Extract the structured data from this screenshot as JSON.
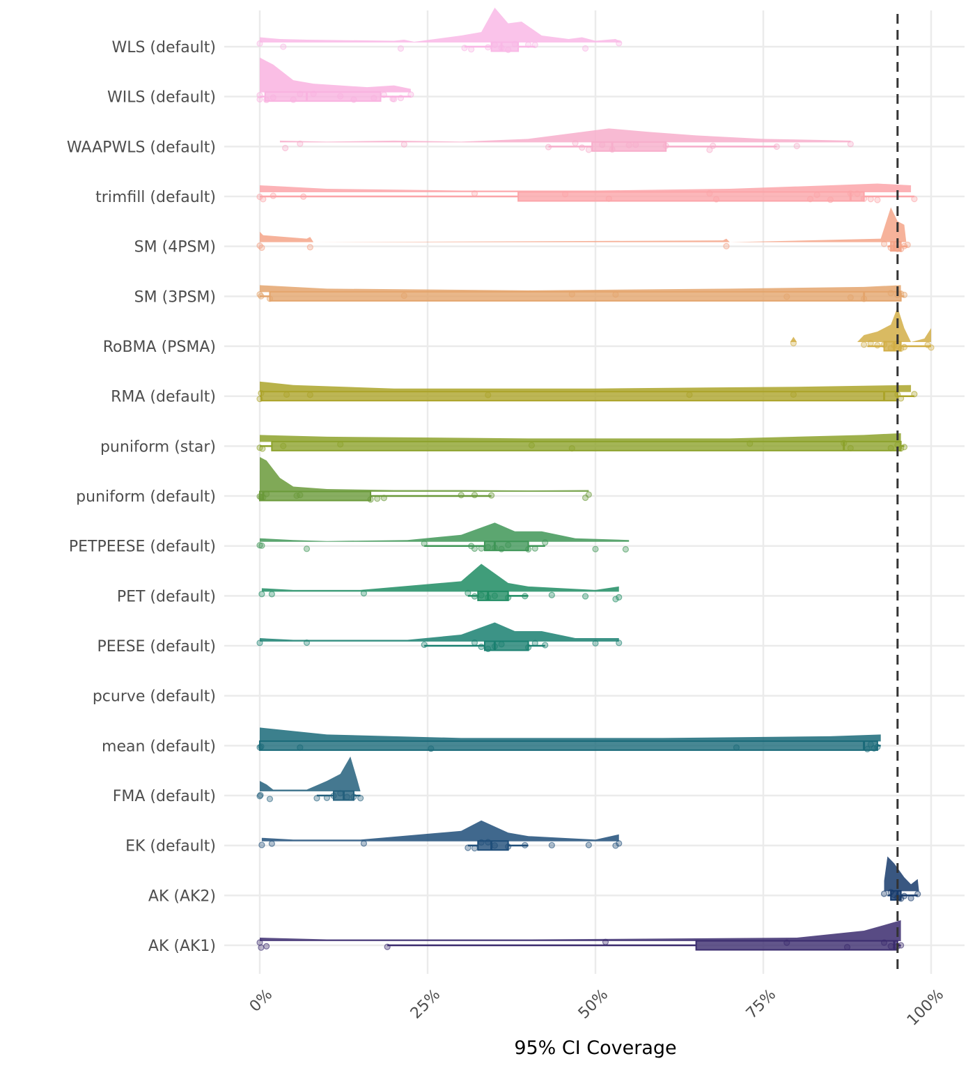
{
  "chart_data": {
    "type": "raincloud",
    "title": "",
    "xlabel": "95% CI Coverage",
    "ylabel": "",
    "xlim": [
      0,
      100
    ],
    "x_ticks": [
      0,
      25,
      50,
      75,
      100
    ],
    "x_tick_labels": [
      "0%",
      "25%",
      "50%",
      "75%",
      "100%"
    ],
    "x_tick_label_rotation_deg": 45,
    "reference_line": {
      "value": 95,
      "style": "dashed",
      "color": "#333333"
    },
    "grid": true,
    "legend": "none",
    "categories": [
      "WLS (default)",
      "WILS (default)",
      "WAAPWLS (default)",
      "trimfill (default)",
      "SM (4PSM)",
      "SM (3PSM)",
      "RoBMA (PSMA)",
      "RMA (default)",
      "puniform (star)",
      "puniform (default)",
      "PETPEESE (default)",
      "PET (default)",
      "PEESE (default)",
      "pcurve (default)",
      "mean (default)",
      "FMA (default)",
      "EK (default)",
      "AK (AK2)",
      "AK (AK1)"
    ],
    "series": [
      {
        "name": "WLS (default)",
        "color": "#F9B8E6",
        "box": {
          "min": 30.5,
          "q1": 34.5,
          "median": 36,
          "q3": 38.5,
          "max": 41
        },
        "points": [
          0,
          3.5,
          21,
          30.5,
          31.5,
          34,
          35,
          36,
          37,
          38,
          40,
          41,
          48.5,
          53.5
        ],
        "density": [
          [
            0,
            0.15
          ],
          [
            3,
            0.1
          ],
          [
            7,
            0.08
          ],
          [
            20,
            0.05
          ],
          [
            21.5,
            0.08
          ],
          [
            23,
            0.02
          ],
          [
            30,
            0.2
          ],
          [
            33,
            0.3
          ],
          [
            35,
            1.0
          ],
          [
            37,
            0.55
          ],
          [
            39,
            0.6
          ],
          [
            42,
            0.2
          ],
          [
            46,
            0.1
          ],
          [
            48,
            0.15
          ],
          [
            50,
            0.05
          ],
          [
            53,
            0.1
          ],
          [
            54,
            0
          ]
        ]
      },
      {
        "name": "WILS (default)",
        "color": "#F9B3E0",
        "box": {
          "min": 0,
          "q1": 0.8,
          "median": 7,
          "q3": 18,
          "max": 22.5
        },
        "points": [
          0,
          0,
          1,
          2,
          5,
          6,
          8,
          12,
          14,
          17,
          18.5,
          19.8,
          20,
          21,
          22.5
        ],
        "density": [
          [
            0,
            1.0
          ],
          [
            2,
            0.8
          ],
          [
            5,
            0.35
          ],
          [
            8,
            0.25
          ],
          [
            12,
            0.2
          ],
          [
            16,
            0.15
          ],
          [
            20,
            0.2
          ],
          [
            22.5,
            0.1
          ]
        ]
      },
      {
        "name": "WAAPWLS (default)",
        "color": "#F7AECB",
        "box": {
          "min": 43,
          "q1": 49.5,
          "median": 52.5,
          "q3": 60.5,
          "max": 77
        },
        "points": [
          3.8,
          6,
          21.5,
          43,
          47,
          48,
          49,
          51,
          52.5,
          55,
          56,
          60.5,
          67,
          67.5,
          77,
          80,
          88
        ],
        "density": [
          [
            3,
            0.05
          ],
          [
            10,
            0.02
          ],
          [
            20,
            0.05
          ],
          [
            30,
            0.02
          ],
          [
            40,
            0.1
          ],
          [
            48,
            0.3
          ],
          [
            52,
            0.4
          ],
          [
            58,
            0.3
          ],
          [
            65,
            0.2
          ],
          [
            75,
            0.1
          ],
          [
            88,
            0.05
          ]
        ]
      },
      {
        "name": "trimfill (default)",
        "color": "#FBA5A9",
        "box": {
          "min": 0,
          "q1": 38.5,
          "median": 88,
          "q3": 90,
          "max": 97.5
        },
        "points": [
          0,
          0.5,
          2,
          6.5,
          32,
          45.5,
          52,
          67,
          68,
          82,
          83,
          85,
          88,
          89,
          90,
          91,
          92,
          97.5
        ],
        "density": [
          [
            0,
            0.2
          ],
          [
            10,
            0.1
          ],
          [
            30,
            0.05
          ],
          [
            50,
            0.05
          ],
          [
            70,
            0.1
          ],
          [
            85,
            0.2
          ],
          [
            92,
            0.25
          ],
          [
            97,
            0.2
          ]
        ]
      },
      {
        "name": "SM (4PSM)",
        "color": "#F4A488",
        "box": {
          "min": 93.5,
          "q1": 94,
          "median": 94.5,
          "q3": 95.5,
          "max": 96.5
        },
        "points": [
          0,
          0.3,
          7.5,
          69.5,
          93,
          94,
          94.5,
          95,
          95.5,
          96,
          96.5
        ],
        "density": [
          [
            0,
            0.3
          ],
          [
            0.5,
            0.2
          ],
          [
            7,
            0.1
          ],
          [
            7.5,
            0.15
          ],
          [
            8,
            0
          ],
          [
            69,
            0.05
          ],
          [
            69.5,
            0.1
          ],
          [
            70,
            0
          ],
          [
            92.5,
            0.1
          ],
          [
            94,
            1.0
          ],
          [
            95,
            0.6
          ],
          [
            96,
            0.5
          ],
          [
            96.3,
            0
          ]
        ]
      },
      {
        "name": "SM (3PSM)",
        "color": "#E4A56D",
        "box": {
          "min": 0,
          "q1": 1.5,
          "median": 90,
          "q3": 95.5,
          "max": 96
        },
        "points": [
          0,
          0.2,
          1.5,
          21.5,
          46.5,
          53,
          78.5,
          88,
          90,
          94,
          95,
          95.5,
          96
        ],
        "density": [
          [
            0,
            0.2
          ],
          [
            10,
            0.1
          ],
          [
            40,
            0.05
          ],
          [
            70,
            0.1
          ],
          [
            90,
            0.15
          ],
          [
            95.5,
            0.2
          ]
        ]
      },
      {
        "name": "RoBMA (PSMA)",
        "color": "#D2AE46",
        "box": {
          "min": 90.5,
          "q1": 93,
          "median": 94.5,
          "q3": 95.5,
          "max": 100
        },
        "points": [
          79.5,
          90,
          91,
          92,
          93,
          94,
          94.5,
          95,
          95.5,
          96,
          99.5,
          100
        ],
        "density": [
          [
            79,
            0
          ],
          [
            79.5,
            0.15
          ],
          [
            80,
            0
          ],
          [
            89,
            0
          ],
          [
            90,
            0.2
          ],
          [
            92,
            0.3
          ],
          [
            94,
            0.5
          ],
          [
            95,
            1.0
          ],
          [
            96,
            0.4
          ],
          [
            97,
            0
          ],
          [
            99,
            0.1
          ],
          [
            100,
            0.4
          ]
        ]
      },
      {
        "name": "RMA (default)",
        "color": "#ACA42A",
        "box": {
          "min": 0,
          "q1": 0.2,
          "median": 93,
          "q3": 95,
          "max": 97.5
        },
        "points": [
          0,
          0.2,
          4,
          7.5,
          34,
          64,
          79.5,
          95,
          95.5,
          97.5
        ],
        "density": [
          [
            0,
            0.3
          ],
          [
            5,
            0.2
          ],
          [
            20,
            0.1
          ],
          [
            50,
            0.1
          ],
          [
            80,
            0.15
          ],
          [
            97,
            0.2
          ]
        ]
      },
      {
        "name": "puniform (star)",
        "color": "#8DA22C",
        "box": {
          "min": 0,
          "q1": 1.8,
          "median": 87,
          "q3": 95.5,
          "max": 96
        },
        "points": [
          0,
          0.4,
          3.5,
          12,
          40.5,
          46.5,
          73,
          87,
          88,
          94,
          95,
          95.5,
          96
        ],
        "density": [
          [
            0,
            0.2
          ],
          [
            10,
            0.15
          ],
          [
            40,
            0.1
          ],
          [
            70,
            0.1
          ],
          [
            90,
            0.2
          ],
          [
            95.5,
            0.25
          ]
        ]
      },
      {
        "name": "puniform (default)",
        "color": "#6A9A3A",
        "box": {
          "min": 0,
          "q1": 0,
          "median": 0.5,
          "q3": 16.5,
          "max": 34.5
        },
        "points": [
          0,
          0.2,
          0.5,
          1,
          5.5,
          6,
          16.5,
          17.5,
          18.5,
          30,
          32,
          34.5,
          48.5,
          49
        ],
        "density": [
          [
            0,
            1.0
          ],
          [
            1,
            0.9
          ],
          [
            3,
            0.4
          ],
          [
            5,
            0.15
          ],
          [
            10,
            0.08
          ],
          [
            20,
            0.05
          ],
          [
            30,
            0.05
          ],
          [
            40,
            0.04
          ],
          [
            49,
            0.05
          ]
        ]
      },
      {
        "name": "PETPEESE (default)",
        "color": "#3F9657",
        "box": {
          "min": 24.5,
          "q1": 33.5,
          "median": 35,
          "q3": 40,
          "max": 42.5
        },
        "points": [
          0,
          0.3,
          7,
          24.5,
          31.5,
          32,
          33,
          34,
          35,
          36,
          37,
          40,
          41,
          42.5,
          50,
          54.5
        ],
        "density": [
          [
            0,
            0.1
          ],
          [
            5,
            0.05
          ],
          [
            10,
            0.02
          ],
          [
            22,
            0.05
          ],
          [
            30,
            0.2
          ],
          [
            35,
            0.55
          ],
          [
            38,
            0.3
          ],
          [
            42,
            0.3
          ],
          [
            47,
            0.1
          ],
          [
            55,
            0.05
          ]
        ]
      },
      {
        "name": "PET (default)",
        "color": "#1F8C63",
        "box": {
          "min": 31,
          "q1": 32.5,
          "median": 34,
          "q3": 37,
          "max": 40
        },
        "points": [
          0.3,
          1.8,
          15.5,
          31,
          32,
          33,
          34,
          35,
          37,
          39.5,
          43.5,
          48.5,
          53,
          53.5
        ],
        "density": [
          [
            0.3,
            0.1
          ],
          [
            5,
            0.05
          ],
          [
            15,
            0.05
          ],
          [
            30,
            0.3
          ],
          [
            33,
            0.8
          ],
          [
            37,
            0.25
          ],
          [
            40,
            0.15
          ],
          [
            45,
            0.1
          ],
          [
            50,
            0.05
          ],
          [
            53.5,
            0.15
          ]
        ]
      },
      {
        "name": "PEESE (default)",
        "color": "#1A8071",
        "box": {
          "min": 24.5,
          "q1": 33.5,
          "median": 35,
          "q3": 40,
          "max": 42.5
        },
        "points": [
          0,
          7,
          24.5,
          32,
          33,
          34,
          35,
          36,
          40,
          41,
          42.5,
          50,
          53.5
        ],
        "density": [
          [
            0,
            0.1
          ],
          [
            5,
            0.05
          ],
          [
            22,
            0.05
          ],
          [
            30,
            0.2
          ],
          [
            35,
            0.55
          ],
          [
            38,
            0.3
          ],
          [
            42,
            0.3
          ],
          [
            47,
            0.1
          ],
          [
            53.5,
            0.1
          ]
        ]
      },
      {
        "name": "pcurve (default)",
        "color": "#16707A",
        "box": null,
        "points": [],
        "density": []
      },
      {
        "name": "mean (default)",
        "color": "#1A6A79",
        "box": {
          "min": 0,
          "q1": 0,
          "median": 90,
          "q3": 92,
          "max": 92.5
        },
        "points": [
          0,
          0.2,
          6,
          25.5,
          71,
          90.5,
          91,
          91.5,
          92
        ],
        "density": [
          [
            0,
            0.4
          ],
          [
            10,
            0.2
          ],
          [
            30,
            0.1
          ],
          [
            60,
            0.1
          ],
          [
            85,
            0.15
          ],
          [
            92.5,
            0.2
          ]
        ]
      },
      {
        "name": "FMA (default)",
        "color": "#24607D",
        "box": {
          "min": 8.5,
          "q1": 11,
          "median": 12.5,
          "q3": 14,
          "max": 15
        },
        "points": [
          0,
          0.1,
          1.5,
          8.5,
          10,
          11,
          12,
          13,
          14,
          15
        ],
        "density": [
          [
            0,
            0.3
          ],
          [
            1,
            0.2
          ],
          [
            2,
            0.05
          ],
          [
            7,
            0.05
          ],
          [
            10,
            0.3
          ],
          [
            12,
            0.5
          ],
          [
            13.5,
            1.0
          ],
          [
            14.5,
            0.35
          ],
          [
            15,
            0
          ]
        ]
      },
      {
        "name": "EK (default)",
        "color": "#1F4E79",
        "box": {
          "min": 31,
          "q1": 32.5,
          "median": 34.5,
          "q3": 37,
          "max": 40
        },
        "points": [
          0.3,
          1.8,
          15.5,
          31,
          32,
          33,
          34,
          35,
          37,
          39.5,
          43.5,
          49,
          53,
          53.5
        ],
        "density": [
          [
            0.3,
            0.1
          ],
          [
            5,
            0.05
          ],
          [
            15,
            0.05
          ],
          [
            30,
            0.3
          ],
          [
            33,
            0.6
          ],
          [
            37,
            0.25
          ],
          [
            40,
            0.15
          ],
          [
            45,
            0.1
          ],
          [
            50,
            0.05
          ],
          [
            53.5,
            0.2
          ]
        ]
      },
      {
        "name": "AK (AK2)",
        "color": "#163A6B",
        "box": {
          "min": 93.5,
          "q1": 94,
          "median": 95,
          "q3": 95.5,
          "max": 98
        },
        "points": [
          93,
          94,
          94.5,
          95,
          95.5,
          96,
          97,
          98
        ],
        "density": [
          [
            93,
            0.3
          ],
          [
            93.5,
            1.0
          ],
          [
            94.5,
            0.8
          ],
          [
            96,
            0.4
          ],
          [
            97,
            0.2
          ],
          [
            98,
            0.35
          ],
          [
            98.2,
            0
          ]
        ]
      },
      {
        "name": "AK (AK1)",
        "color": "#3B2C6E",
        "box": {
          "min": 19,
          "q1": 65,
          "median": 94.5,
          "q3": 95,
          "max": 95.5
        },
        "points": [
          0,
          0.2,
          1,
          19,
          51.5,
          78.5,
          87.5,
          93,
          94,
          95,
          95.5
        ],
        "density": [
          [
            0,
            0.1
          ],
          [
            10,
            0.05
          ],
          [
            40,
            0.05
          ],
          [
            80,
            0.1
          ],
          [
            90,
            0.3
          ],
          [
            95.5,
            0.6
          ]
        ]
      }
    ]
  }
}
